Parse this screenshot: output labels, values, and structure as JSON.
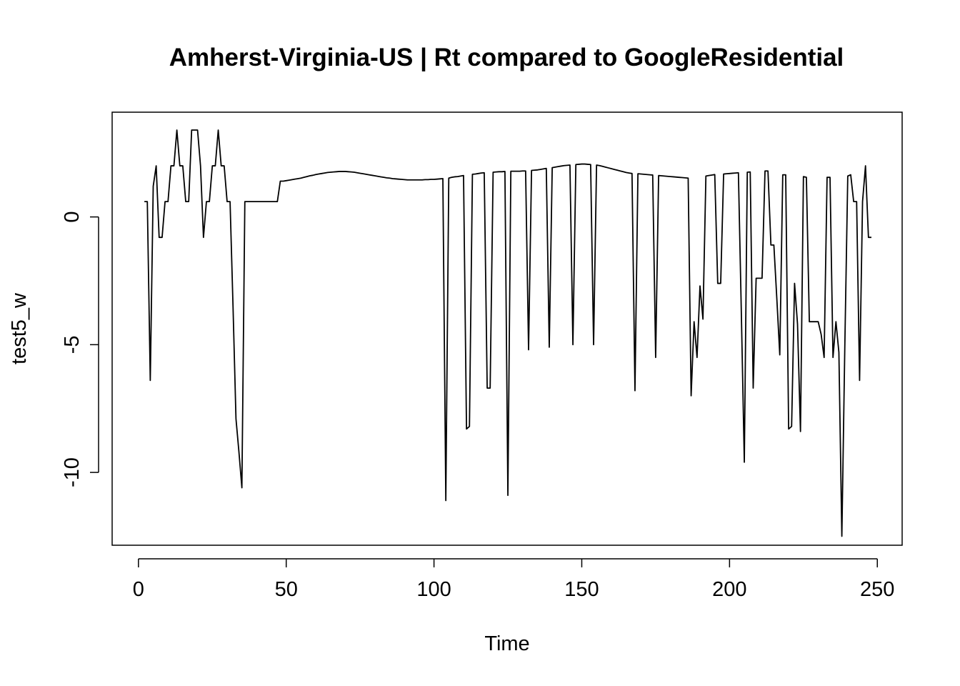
{
  "chart_data": {
    "type": "line",
    "title": "Amherst-Virginia-US | Rt compared to GoogleResidential",
    "xlabel": "Time",
    "ylabel": "test5_w",
    "xlim": [
      -8.9,
      258.4
    ],
    "ylim": [
      -12.85,
      4.1
    ],
    "xticks": [
      0,
      50,
      100,
      150,
      200,
      250
    ],
    "xtick_labels": [
      "0",
      "50",
      "100",
      "150",
      "200",
      "250"
    ],
    "yticks": [
      -10,
      -5,
      0
    ],
    "ytick_labels": [
      "-10",
      "-5",
      "0"
    ],
    "grid": false,
    "legend": "none",
    "line_color": "#000000",
    "series": [
      {
        "x": [
          2,
          3,
          4,
          5,
          6,
          7,
          8,
          9,
          10,
          11,
          12,
          13,
          14,
          15,
          16,
          17,
          18,
          19,
          20,
          21,
          22,
          23,
          24,
          25,
          26,
          27,
          28,
          29,
          30,
          31,
          32,
          33,
          34,
          35,
          36,
          37,
          38,
          39,
          40,
          41,
          42,
          43,
          44,
          45,
          46,
          47,
          48,
          49,
          50,
          51,
          52,
          53,
          54,
          55,
          56,
          57,
          58,
          59,
          60,
          61,
          62,
          63,
          64,
          65,
          66,
          67,
          68,
          69,
          70,
          71,
          72,
          73,
          74,
          75,
          76,
          77,
          78,
          79,
          80,
          81,
          82,
          83,
          84,
          85,
          86,
          87,
          88,
          89,
          90,
          91,
          92,
          93,
          94,
          95,
          96,
          97,
          98,
          99,
          100,
          101,
          102,
          103,
          104,
          105,
          106,
          107,
          108,
          109,
          110,
          111,
          112,
          113,
          114,
          115,
          116,
          117,
          118,
          119,
          120,
          121,
          122,
          123,
          124,
          125,
          126,
          127,
          128,
          129,
          130,
          131,
          132,
          133,
          134,
          135,
          136,
          137,
          138,
          139,
          140,
          141,
          142,
          143,
          144,
          145,
          146,
          147,
          148,
          149,
          150,
          151,
          152,
          153,
          154,
          155,
          156,
          157,
          158,
          159,
          160,
          161,
          162,
          163,
          164,
          165,
          166,
          167,
          168,
          169,
          170,
          171,
          172,
          173,
          174,
          175,
          176,
          177,
          178,
          179,
          180,
          181,
          182,
          183,
          184,
          185,
          186,
          187,
          188,
          189,
          190,
          191,
          192,
          193,
          194,
          195,
          196,
          197,
          198,
          199,
          200,
          201,
          202,
          203,
          204,
          205,
          206,
          207,
          208,
          209,
          210,
          211,
          212,
          213,
          214,
          215,
          216,
          217,
          218,
          219,
          220,
          221,
          222,
          223,
          224,
          225,
          226,
          227,
          228,
          229,
          230,
          231,
          232,
          233,
          234,
          235,
          236,
          237,
          238,
          239,
          240,
          241,
          242,
          243,
          244,
          245,
          246,
          247,
          248
        ],
        "y": [
          0.6,
          0.6,
          -6.4,
          1.2,
          2.0,
          -0.8,
          -0.8,
          0.6,
          0.6,
          2.0,
          2.0,
          3.4,
          2.0,
          2.0,
          0.6,
          0.6,
          3.4,
          3.4,
          3.4,
          2.0,
          -0.8,
          0.6,
          0.6,
          2.0,
          2.0,
          3.4,
          2.0,
          2.0,
          0.6,
          0.6,
          -3.5,
          -7.9,
          -9.2,
          -10.6,
          0.6,
          0.6,
          0.6,
          0.6,
          0.6,
          0.6,
          0.6,
          0.6,
          0.6,
          0.6,
          0.6,
          0.6,
          1.4,
          1.4,
          1.42,
          1.44,
          1.46,
          1.48,
          1.5,
          1.52,
          1.55,
          1.58,
          1.61,
          1.63,
          1.66,
          1.68,
          1.7,
          1.72,
          1.74,
          1.75,
          1.76,
          1.77,
          1.78,
          1.78,
          1.78,
          1.77,
          1.76,
          1.75,
          1.73,
          1.71,
          1.69,
          1.67,
          1.65,
          1.63,
          1.61,
          1.59,
          1.57,
          1.55,
          1.53,
          1.52,
          1.5,
          1.49,
          1.48,
          1.47,
          1.46,
          1.45,
          1.45,
          1.45,
          1.45,
          1.45,
          1.45,
          1.46,
          1.46,
          1.47,
          1.47,
          1.48,
          1.49,
          1.5,
          -11.1,
          1.52,
          1.55,
          1.57,
          1.58,
          1.6,
          1.62,
          -8.3,
          -8.2,
          1.67,
          1.68,
          1.7,
          1.72,
          1.73,
          -6.7,
          -6.7,
          1.75,
          1.76,
          1.77,
          1.77,
          1.78,
          -10.9,
          1.79,
          1.79,
          1.79,
          1.79,
          1.8,
          1.8,
          -5.2,
          1.82,
          1.83,
          1.84,
          1.86,
          1.88,
          1.9,
          -5.1,
          1.93,
          1.95,
          1.97,
          1.99,
          2.01,
          2.02,
          2.03,
          -5.0,
          2.05,
          2.06,
          2.07,
          2.07,
          2.06,
          2.05,
          -5.0,
          2.03,
          2.01,
          1.98,
          1.95,
          1.92,
          1.89,
          1.86,
          1.83,
          1.8,
          1.77,
          1.74,
          1.72,
          1.7,
          -6.8,
          1.69,
          1.68,
          1.67,
          1.66,
          1.65,
          1.64,
          -5.5,
          1.62,
          1.61,
          1.6,
          1.59,
          1.58,
          1.57,
          1.56,
          1.55,
          1.54,
          1.53,
          1.52,
          -7.0,
          -4.1,
          -5.5,
          -2.7,
          -4.0,
          1.6,
          1.62,
          1.64,
          1.66,
          -2.6,
          -2.6,
          1.68,
          1.69,
          1.7,
          1.71,
          1.72,
          1.73,
          -3.8,
          -9.6,
          1.75,
          1.76,
          -6.7,
          -2.4,
          -2.4,
          -2.4,
          1.8,
          1.8,
          -1.1,
          -1.1,
          -3.2,
          -5.4,
          1.65,
          1.65,
          -8.3,
          -8.2,
          -2.6,
          -4.2,
          -8.4,
          1.58,
          1.55,
          -4.1,
          -4.1,
          -4.1,
          -4.1,
          -4.6,
          -5.5,
          1.55,
          1.55,
          -5.5,
          -4.1,
          -5.3,
          -12.5,
          -5.1,
          1.6,
          1.65,
          0.6,
          0.6,
          -6.4,
          0.6,
          2.0,
          -0.8,
          -0.8
        ]
      }
    ]
  }
}
